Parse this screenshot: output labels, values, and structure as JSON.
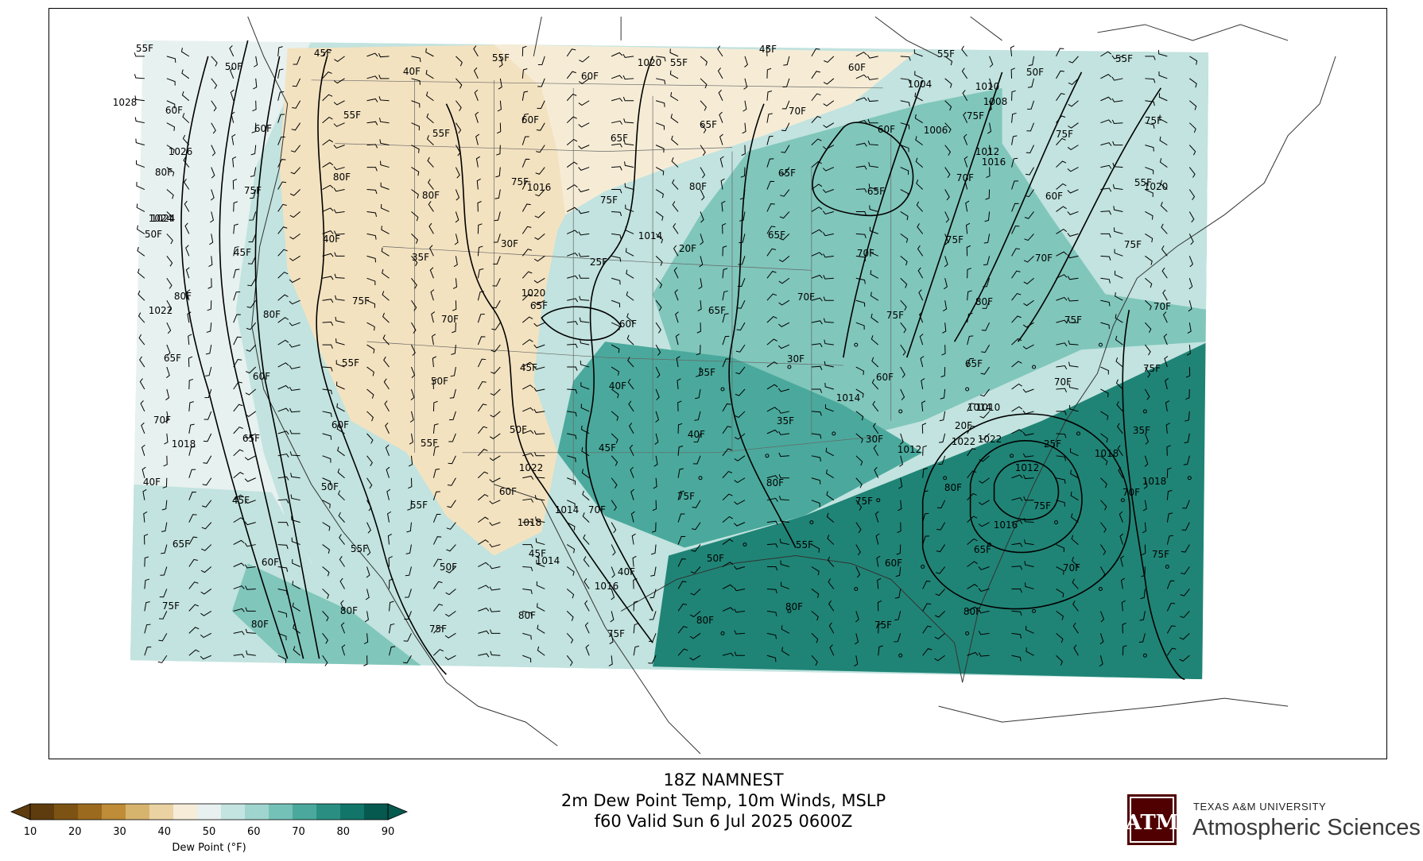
{
  "title": {
    "line1": "18Z NAMNEST",
    "line2": "2m Dew Point Temp, 10m Winds, MSLP",
    "line3": "f60 Valid Sun 6 Jul 2025 0600Z"
  },
  "colorbar": {
    "label": "Dew Point (°F)",
    "ticks": [
      "10",
      "20",
      "30",
      "40",
      "50",
      "60",
      "70",
      "80",
      "90"
    ],
    "colors": [
      "#5e3c0d",
      "#7d5314",
      "#9c6a1f",
      "#bf8c37",
      "#d7b46d",
      "#ead2a2",
      "#f6ecd8",
      "#e8f0f0",
      "#c4e4e2",
      "#9fd4cf",
      "#74c1b7",
      "#4aa99c",
      "#2a8f82",
      "#12756a",
      "#05594f"
    ]
  },
  "logo": {
    "university": "TEXAS A&M UNIVERSITY",
    "department": "Atmospheric Sciences",
    "mark_text": "ATM"
  },
  "fills": {
    "dry": "#f3e2c0",
    "dry_light": "#f6ecd6",
    "near_white": "#e7f1ef",
    "light_teal": "#c2e3df",
    "mid_teal": "#80c6bb",
    "teal": "#4aa99c",
    "dark_teal": "#1f8476"
  },
  "map_labels": {
    "isobars": [
      "1028",
      "1026",
      "1024",
      "1022",
      "1020",
      "1018",
      "1014",
      "1012",
      "1010",
      "1006",
      "1004",
      "1008",
      "1016",
      "1022",
      "1020",
      "1018",
      "1014",
      "1012",
      "1010",
      "1016",
      "1022",
      "1014",
      "1016",
      "1018",
      "1014",
      "1012",
      "1014",
      "1016",
      "1018",
      "1022",
      "1020",
      "1024"
    ],
    "dewpoints": [
      "55F",
      "50F",
      "45F",
      "40F",
      "55F",
      "60F",
      "55F",
      "45F",
      "60F",
      "55F",
      "50F",
      "55F",
      "60F",
      "60F",
      "55F",
      "55F",
      "60F",
      "65F",
      "65F",
      "70F",
      "60F",
      "75F",
      "75F",
      "75F",
      "80F",
      "75F",
      "80F",
      "80F",
      "75F",
      "75F",
      "80F",
      "65F",
      "65F",
      "70F",
      "60F",
      "55F",
      "50F",
      "45F",
      "40F",
      "35F",
      "30F",
      "25F",
      "20F",
      "65F",
      "70F",
      "75F",
      "70F",
      "75F",
      "80F",
      "80F",
      "75F",
      "70F",
      "65F",
      "60F",
      "65F",
      "70F",
      "75F",
      "80F",
      "75F",
      "70F",
      "65F",
      "60F",
      "55F",
      "50F",
      "45F",
      "40F",
      "35F",
      "30F",
      "60F",
      "65F",
      "70F",
      "75F",
      "70F",
      "65F",
      "60F",
      "55F",
      "50F",
      "45F",
      "40F",
      "35F",
      "30F",
      "20F",
      "25F",
      "35F",
      "40F",
      "45F",
      "50F",
      "55F",
      "60F",
      "70F",
      "75F",
      "80F",
      "75F",
      "80F",
      "75F",
      "70F",
      "65F",
      "60F",
      "55F",
      "50F",
      "45F",
      "40F",
      "50F",
      "55F",
      "60F",
      "65F",
      "70F",
      "75F",
      "75F",
      "80F",
      "80F",
      "75F",
      "80F",
      "75F",
      "80F",
      "80F",
      "75F",
      "80F"
    ]
  }
}
